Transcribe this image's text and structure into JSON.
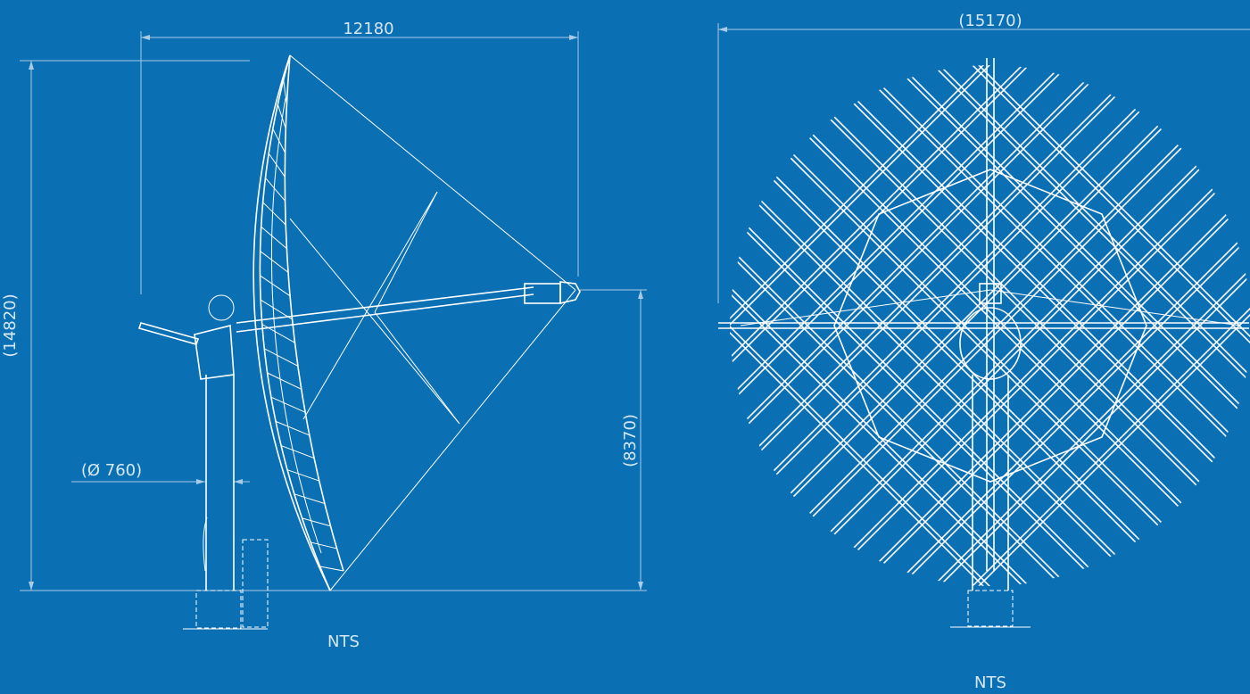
{
  "views": [
    {
      "dimensions": {
        "width": "12180",
        "height": "(14820)",
        "pipe_diameter": "(Ø 760)",
        "focus_height": "(8370)"
      },
      "scale_note": "NTS"
    },
    {
      "dimensions": {
        "width": "(15170)"
      },
      "scale_note": "NTS"
    }
  ]
}
